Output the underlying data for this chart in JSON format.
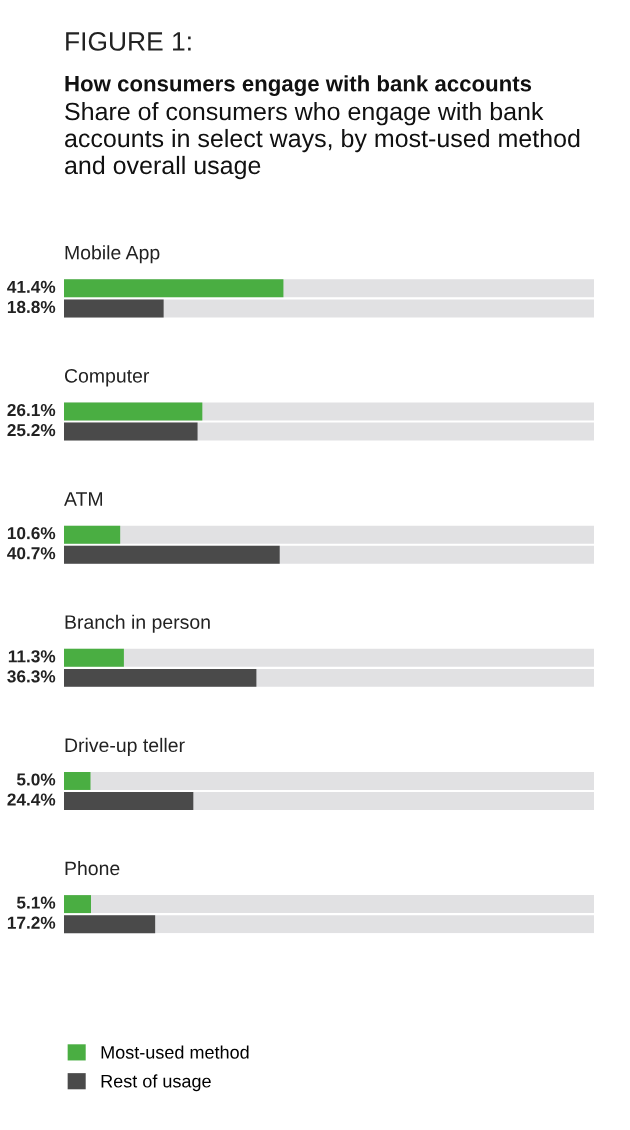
{
  "chart_data": {
    "type": "bar",
    "orientation": "horizontal",
    "title": "How consumers engage with bank accounts",
    "subtitle": "Share of consumers who engage with bank accounts in select ways, by most-used method and overall usage",
    "annotations": [
      "FIGURE 1:"
    ],
    "categories": [
      "Mobile App",
      "Computer",
      "ATM",
      "Branch in person",
      "Drive-up teller",
      "Phone"
    ],
    "series": [
      {
        "name": "Most-used method",
        "color": "#4aae42",
        "values": [
          41.4,
          26.1,
          10.6,
          11.3,
          5.0,
          5.1
        ],
        "value_labels": [
          "41.4%",
          "26.1%",
          "10.6%",
          "11.3%",
          "5.0%",
          "5.1%"
        ]
      },
      {
        "name": "Rest of usage",
        "color": "#4a4a4a",
        "values": [
          18.8,
          25.2,
          40.7,
          36.3,
          24.4,
          17.2
        ],
        "value_labels": [
          "18.8%",
          "25.2%",
          "40.7%",
          "36.3%",
          "24.4%",
          "17.2%"
        ]
      }
    ],
    "xlim": [
      0,
      100
    ],
    "bands": [
      {
        "axis": "x",
        "from": 0,
        "to": 100,
        "color": "#e1e1e3"
      }
    ],
    "legend": "bottom left"
  }
}
